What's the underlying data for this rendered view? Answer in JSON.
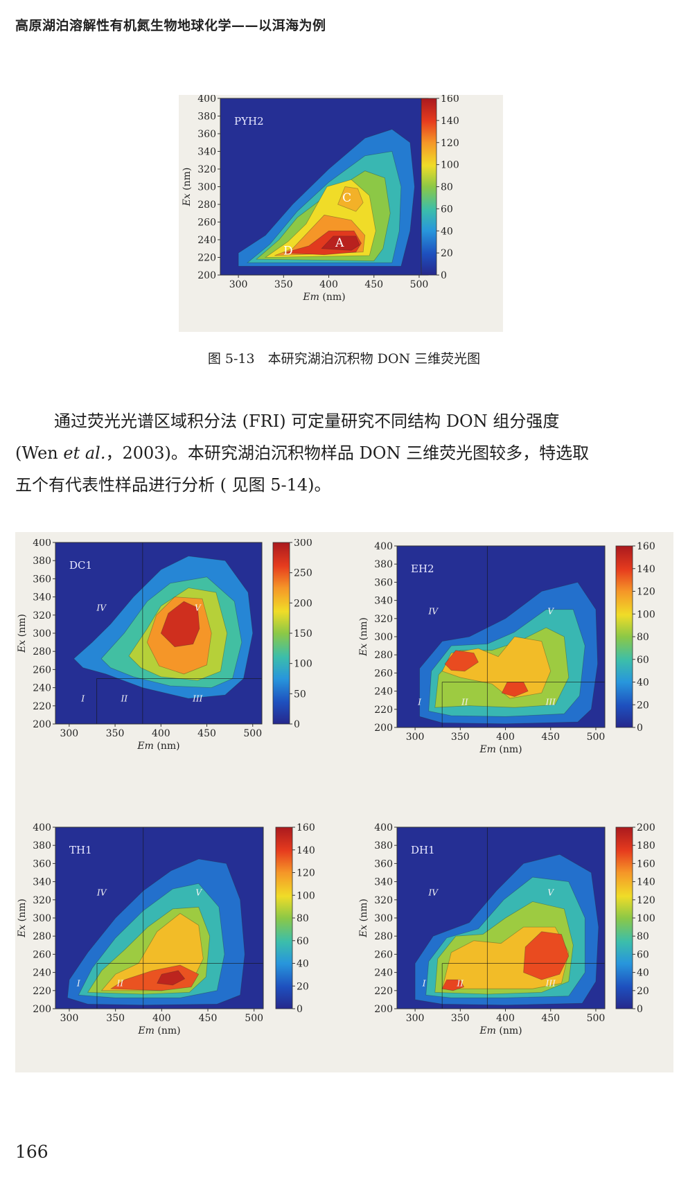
{
  "header": {
    "title": "高原湖泊溶解性有机氮生物地球化学——以洱海为例"
  },
  "figure_513": {
    "caption": "图 5-13　本研究湖泊沉积物 DON 三维荧光图"
  },
  "paragraph": {
    "line1": "通过荧光光谱区域积分法 (FRI) 可定量研究不同结构 DON 组分强度",
    "line2_pre": "(Wen ",
    "line2_italic": "et al.",
    "line2_post": "，2003)。本研究湖泊沉积物样品 DON 三维荧光图较多，特选取",
    "line3": "五个有代表性样品进行分析 ( 见图 5-14)。"
  },
  "page_number": "166",
  "chart_data": [
    {
      "type": "heatmap",
      "panel_label": "PYH2",
      "xlabel_italic": "Em",
      "xlabel_unit": " (nm)",
      "ylabel_italic": "Ex",
      "ylabel_unit": " (nm)",
      "xlim": [
        280,
        510
      ],
      "ylim": [
        200,
        400
      ],
      "x_ticks": [
        300,
        350,
        400,
        450,
        500
      ],
      "y_ticks": [
        200,
        220,
        240,
        260,
        280,
        300,
        320,
        340,
        360,
        380,
        400
      ],
      "colorbar_ticks": [
        0,
        20,
        40,
        60,
        80,
        100,
        120,
        140,
        160
      ],
      "colorbar_max": 160,
      "peaks": [
        {
          "label": "A",
          "em": 412,
          "ex": 237,
          "intensity": 160
        },
        {
          "label": "C",
          "em": 420,
          "ex": 288,
          "intensity": 110
        },
        {
          "label": "D",
          "em": 355,
          "ex": 228,
          "intensity": 140
        }
      ],
      "region_labels": []
    },
    {
      "type": "heatmap",
      "panel_label": "DC1",
      "xlabel_italic": "Em",
      "xlabel_unit": " (nm)",
      "ylabel_italic": "Ex",
      "ylabel_unit": " (nm)",
      "xlim": [
        285,
        510
      ],
      "ylim": [
        200,
        400
      ],
      "x_ticks": [
        300,
        350,
        400,
        450,
        500
      ],
      "y_ticks": [
        200,
        220,
        240,
        260,
        280,
        300,
        320,
        340,
        360,
        380,
        400
      ],
      "colorbar_ticks": [
        0,
        50,
        100,
        150,
        200,
        250,
        300
      ],
      "colorbar_max": 300,
      "peaks": [
        {
          "label": "",
          "em": 425,
          "ex": 310,
          "intensity": 300
        }
      ],
      "region_labels": [
        {
          "text": "I",
          "em": 315,
          "ex": 225
        },
        {
          "text": "II",
          "em": 360,
          "ex": 225
        },
        {
          "text": "III",
          "em": 440,
          "ex": 225
        },
        {
          "text": "IV",
          "em": 335,
          "ex": 325
        },
        {
          "text": "V",
          "em": 440,
          "ex": 325
        }
      ]
    },
    {
      "type": "heatmap",
      "panel_label": "EH2",
      "xlabel_italic": "Em",
      "xlabel_unit": " (nm)",
      "ylabel_italic": "Ex",
      "ylabel_unit": " (nm)",
      "xlim": [
        280,
        510
      ],
      "ylim": [
        200,
        400
      ],
      "x_ticks": [
        300,
        350,
        400,
        450,
        500
      ],
      "y_ticks": [
        200,
        220,
        240,
        260,
        280,
        300,
        320,
        340,
        360,
        380,
        400
      ],
      "colorbar_ticks": [
        0,
        20,
        40,
        60,
        80,
        100,
        120,
        140,
        160
      ],
      "colorbar_max": 160,
      "peaks": [
        {
          "label": "",
          "em": 345,
          "ex": 278,
          "intensity": 160
        },
        {
          "label": "",
          "em": 405,
          "ex": 242,
          "intensity": 140
        }
      ],
      "region_labels": [
        {
          "text": "I",
          "em": 305,
          "ex": 225
        },
        {
          "text": "II",
          "em": 355,
          "ex": 225
        },
        {
          "text": "III",
          "em": 450,
          "ex": 225
        },
        {
          "text": "IV",
          "em": 320,
          "ex": 325
        },
        {
          "text": "V",
          "em": 450,
          "ex": 325
        }
      ]
    },
    {
      "type": "heatmap",
      "panel_label": "TH1",
      "xlabel_italic": "Em",
      "xlabel_unit": " (nm)",
      "ylabel_italic": "Ex",
      "ylabel_unit": " (nm)",
      "xlim": [
        285,
        510
      ],
      "ylim": [
        200,
        400
      ],
      "x_ticks": [
        300,
        350,
        400,
        450,
        500
      ],
      "y_ticks": [
        200,
        220,
        240,
        260,
        280,
        300,
        320,
        340,
        360,
        380,
        400
      ],
      "colorbar_ticks": [
        0,
        20,
        40,
        60,
        80,
        100,
        120,
        140,
        160
      ],
      "colorbar_max": 160,
      "peaks": [
        {
          "label": "",
          "em": 405,
          "ex": 235,
          "intensity": 160
        }
      ],
      "region_labels": [
        {
          "text": "I",
          "em": 310,
          "ex": 225
        },
        {
          "text": "II",
          "em": 355,
          "ex": 225
        },
        {
          "text": "IV",
          "em": 335,
          "ex": 325
        },
        {
          "text": "V",
          "em": 440,
          "ex": 325
        }
      ]
    },
    {
      "type": "heatmap",
      "panel_label": "DH1",
      "xlabel_italic": "Em",
      "xlabel_unit": " (nm)",
      "ylabel_italic": "Ex",
      "ylabel_unit": " (nm)",
      "xlim": [
        280,
        510
      ],
      "ylim": [
        200,
        400
      ],
      "x_ticks": [
        300,
        350,
        400,
        450,
        500
      ],
      "y_ticks": [
        200,
        220,
        240,
        260,
        280,
        300,
        320,
        340,
        360,
        380,
        400
      ],
      "colorbar_ticks": [
        0,
        20,
        40,
        60,
        80,
        100,
        120,
        140,
        160,
        180,
        200
      ],
      "colorbar_max": 200,
      "peaks": [
        {
          "label": "",
          "em": 445,
          "ex": 265,
          "intensity": 200
        },
        {
          "label": "",
          "em": 340,
          "ex": 225,
          "intensity": 170
        }
      ],
      "region_labels": [
        {
          "text": "I",
          "em": 310,
          "ex": 225
        },
        {
          "text": "II",
          "em": 350,
          "ex": 225
        },
        {
          "text": "III",
          "em": 450,
          "ex": 225
        },
        {
          "text": "IV",
          "em": 320,
          "ex": 325
        },
        {
          "text": "V",
          "em": 450,
          "ex": 325
        }
      ]
    }
  ]
}
